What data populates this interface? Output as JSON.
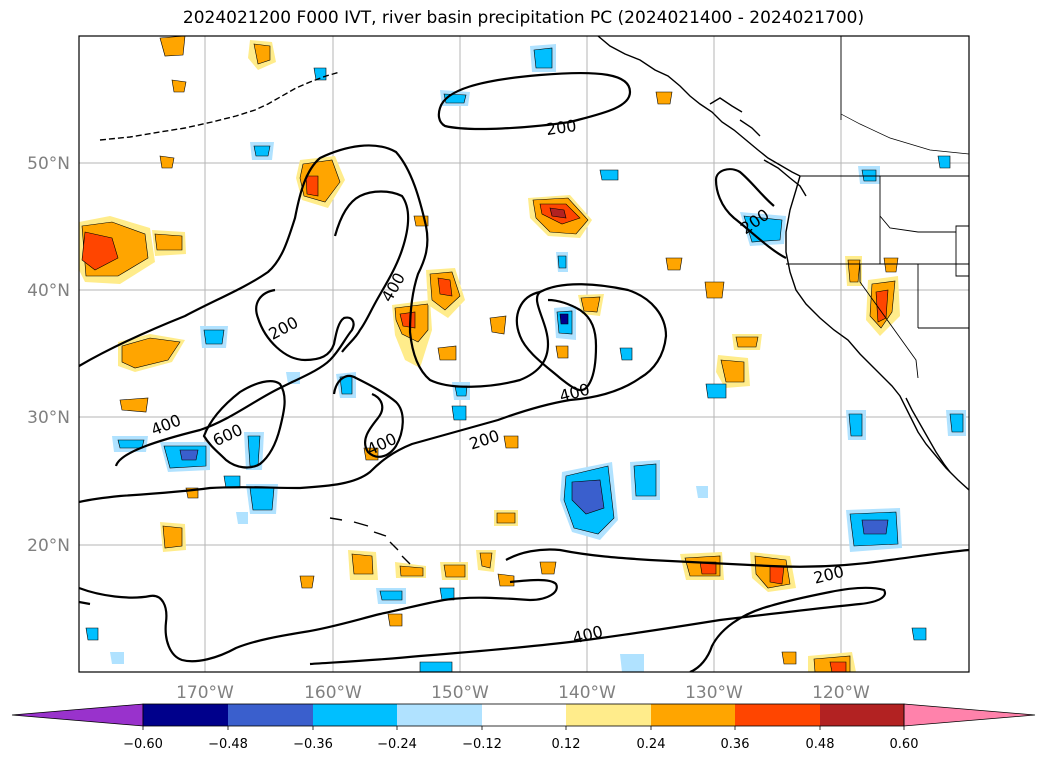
{
  "title": "2024021200 F000 IVT, river basin precipitation PC (2024021400 - 2024021700)",
  "gridlines": {
    "lon_labels": [
      "170°W",
      "160°W",
      "150°W",
      "140°W",
      "130°W",
      "120°W"
    ],
    "lat_labels": [
      "50°N",
      "40°N",
      "30°N",
      "20°N"
    ]
  },
  "ivt_contour_labels": [
    {
      "text": "200",
      "rot": -8
    },
    {
      "text": "200",
      "rot": -35
    },
    {
      "text": "200",
      "rot": -28
    },
    {
      "text": "200",
      "rot": -18
    },
    {
      "text": "200",
      "rot": -14
    },
    {
      "text": "400",
      "rot": -60
    },
    {
      "text": "400",
      "rot": -22
    },
    {
      "text": "400",
      "rot": -25
    },
    {
      "text": "400",
      "rot": -15
    },
    {
      "text": "400",
      "rot": -14
    },
    {
      "text": "600",
      "rot": -25
    }
  ],
  "colorbar": {
    "colors": [
      "#9932cc",
      "#00008b",
      "#3a5fcd",
      "#00bfff",
      "#b0e2ff",
      "#ffffff",
      "#ffec8b",
      "#ffa500",
      "#ff4500",
      "#b22222",
      "#ff82ab"
    ],
    "ticks": [
      "−0.60",
      "−0.48",
      "−0.36",
      "−0.24",
      "−0.12",
      "0.12",
      "0.24",
      "0.36",
      "0.48",
      "0.60"
    ]
  }
}
